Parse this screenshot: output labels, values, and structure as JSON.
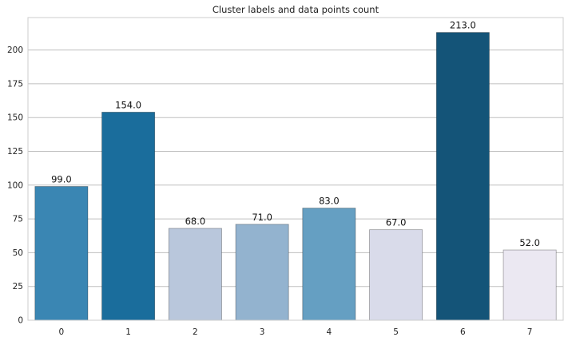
{
  "chart_data": {
    "type": "bar",
    "title": "Cluster labels and data points count",
    "xlabel": "",
    "ylabel": "",
    "categories": [
      "0",
      "1",
      "2",
      "3",
      "4",
      "5",
      "6",
      "7"
    ],
    "values": [
      99,
      154,
      68,
      71,
      83,
      67,
      213,
      52
    ],
    "data_labels": [
      "99.0",
      "154.0",
      "68.0",
      "71.0",
      "83.0",
      "67.0",
      "213.0",
      "52.0"
    ],
    "bar_colors": [
      "#3a86b3",
      "#1a6d9c",
      "#b9c7dc",
      "#93b3cf",
      "#659fc2",
      "#d9dbea",
      "#145478",
      "#ebe8f2"
    ],
    "ylim": [
      0,
      224
    ],
    "yticks": [
      0,
      25,
      50,
      75,
      100,
      125,
      150,
      175,
      200
    ],
    "grid": "horizontal",
    "legend": "none"
  }
}
